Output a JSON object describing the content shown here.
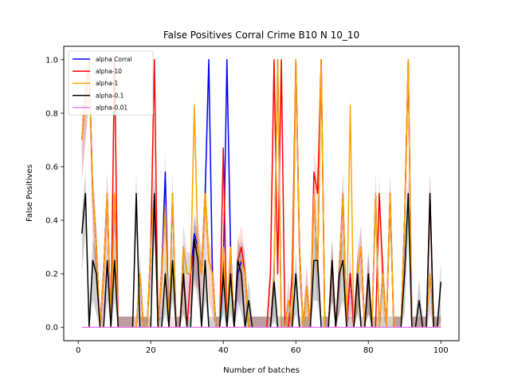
{
  "chart_data": {
    "type": "line",
    "title": "False Positives Corral Crime B10 N 10_10",
    "xlabel": "Number of batches",
    "ylabel": "False Positives",
    "xlim": [
      -4,
      105
    ],
    "ylim": [
      -0.05,
      1.05
    ],
    "xticks": [
      0,
      20,
      40,
      60,
      80,
      100
    ],
    "yticks": [
      0.0,
      0.2,
      0.4,
      0.6,
      0.8,
      1.0
    ],
    "grid": false,
    "legend_position": "top-left",
    "x": [
      1,
      2,
      3,
      4,
      5,
      6,
      7,
      8,
      9,
      10,
      11,
      12,
      13,
      14,
      15,
      16,
      17,
      18,
      19,
      20,
      21,
      22,
      23,
      24,
      25,
      26,
      27,
      28,
      29,
      30,
      31,
      32,
      33,
      34,
      35,
      36,
      37,
      38,
      39,
      40,
      41,
      42,
      43,
      44,
      45,
      46,
      47,
      48,
      49,
      50,
      51,
      52,
      53,
      54,
      55,
      56,
      57,
      58,
      59,
      60,
      61,
      62,
      63,
      64,
      65,
      66,
      67,
      68,
      69,
      70,
      71,
      72,
      73,
      74,
      75,
      76,
      77,
      78,
      79,
      80,
      81,
      82,
      83,
      84,
      85,
      86,
      87,
      88,
      89,
      90,
      91,
      92,
      93,
      94,
      95,
      96,
      97,
      98,
      99,
      100
    ],
    "series": [
      {
        "name": "alpha Corral",
        "color": "#0000ff",
        "values": [
          0.7,
          0.85,
          1.0,
          0.5,
          0.3,
          0.0,
          0.2,
          0.5,
          0.0,
          0.5,
          0.0,
          0.0,
          0.0,
          0.0,
          0.0,
          0.0,
          0.2,
          0.0,
          0.0,
          0.3,
          0.5,
          0.0,
          0.2,
          0.58,
          0.0,
          0.5,
          0.0,
          0.0,
          0.3,
          0.2,
          0.2,
          0.35,
          0.3,
          0.2,
          0.5,
          1.0,
          0.2,
          0.0,
          0.0,
          0.2,
          1.0,
          0.3,
          0.0,
          0.2,
          0.25,
          0.2,
          0.0,
          0.0,
          0.0,
          0.0,
          0.0,
          0.0,
          0.0,
          0.2,
          1.0,
          0.0,
          0.0,
          0.1,
          0.0,
          1.0,
          0.3,
          0.0,
          0.15,
          0.0,
          0.5,
          0.2,
          1.0,
          0.0,
          0.0,
          0.25,
          0.0,
          0.2,
          0.5,
          0.0,
          0.2,
          0.0,
          0.2,
          0.3,
          0.0,
          0.2,
          0.0,
          0.5,
          0.0,
          0.2,
          0.0,
          0.5,
          0.0,
          0.0,
          0.0,
          0.4,
          1.0,
          0.0,
          0.0,
          0.0,
          0.0,
          0.0,
          0.2,
          0.0,
          0.0,
          0.0
        ]
      },
      {
        "name": "alpha-10",
        "color": "#ff0000",
        "values": [
          0.7,
          0.85,
          1.0,
          0.5,
          0.3,
          0.0,
          0.2,
          0.5,
          0.0,
          1.0,
          0.0,
          0.0,
          0.0,
          0.0,
          0.0,
          0.0,
          0.0,
          0.0,
          0.0,
          0.3,
          1.0,
          0.0,
          0.2,
          0.45,
          0.0,
          0.0,
          0.0,
          0.0,
          0.2,
          0.0,
          0.2,
          0.3,
          0.3,
          0.2,
          0.5,
          0.25,
          0.2,
          0.0,
          0.0,
          0.67,
          0.0,
          0.3,
          0.0,
          0.25,
          0.3,
          0.2,
          0.0,
          0.0,
          0.0,
          0.0,
          0.0,
          0.0,
          0.2,
          1.0,
          0.2,
          1.0,
          0.0,
          0.0,
          0.2,
          1.0,
          0.3,
          0.0,
          0.15,
          0.0,
          0.58,
          0.5,
          1.0,
          0.0,
          0.0,
          0.25,
          0.0,
          0.2,
          0.5,
          0.0,
          0.2,
          0.0,
          0.2,
          0.3,
          0.0,
          0.2,
          0.0,
          0.0,
          0.5,
          0.2,
          0.0,
          0.5,
          0.0,
          0.0,
          0.0,
          0.4,
          1.0,
          0.0,
          0.0,
          0.0,
          0.0,
          0.0,
          0.5,
          0.0,
          0.0,
          0.0
        ]
      },
      {
        "name": "alpha-1",
        "color": "#ffa500",
        "values": [
          0.7,
          0.85,
          1.0,
          0.5,
          0.3,
          0.0,
          0.2,
          0.5,
          0.0,
          0.5,
          0.0,
          0.0,
          0.0,
          0.0,
          0.0,
          0.0,
          0.2,
          0.0,
          0.0,
          0.3,
          0.5,
          0.0,
          0.2,
          0.45,
          0.0,
          0.5,
          0.0,
          0.0,
          0.3,
          0.2,
          0.2,
          0.83,
          0.3,
          0.2,
          0.5,
          0.25,
          0.2,
          0.0,
          0.0,
          0.3,
          0.0,
          0.3,
          0.0,
          0.25,
          0.25,
          0.2,
          0.0,
          0.0,
          0.0,
          0.0,
          0.0,
          0.0,
          0.0,
          0.2,
          1.0,
          0.0,
          0.0,
          0.1,
          0.0,
          1.0,
          0.3,
          0.0,
          0.15,
          0.0,
          0.5,
          0.2,
          1.0,
          0.0,
          0.0,
          0.25,
          0.0,
          0.2,
          0.5,
          0.0,
          0.83,
          0.0,
          0.2,
          0.3,
          0.0,
          0.2,
          0.0,
          0.5,
          0.0,
          0.2,
          0.0,
          0.5,
          0.0,
          0.0,
          0.0,
          0.4,
          1.0,
          0.0,
          0.0,
          0.0,
          0.0,
          0.0,
          0.2,
          0.0,
          0.0,
          0.0
        ]
      },
      {
        "name": "alpha-0.1",
        "color": "#000000",
        "values": [
          0.35,
          0.5,
          0.0,
          0.25,
          0.2,
          0.0,
          0.0,
          0.25,
          0.0,
          0.25,
          0.0,
          0.0,
          0.0,
          0.0,
          0.0,
          0.5,
          0.0,
          0.0,
          0.0,
          0.0,
          0.5,
          0.0,
          0.0,
          0.2,
          0.0,
          0.25,
          0.0,
          0.0,
          0.2,
          0.0,
          0.0,
          0.33,
          0.25,
          0.0,
          0.25,
          0.0,
          0.0,
          0.0,
          0.0,
          0.2,
          0.0,
          0.2,
          0.0,
          0.25,
          0.2,
          0.0,
          0.1,
          0.0,
          0.0,
          0.0,
          0.0,
          0.0,
          0.0,
          0.17,
          0.0,
          0.0,
          0.0,
          0.0,
          0.0,
          0.2,
          0.0,
          0.0,
          0.0,
          0.0,
          0.25,
          0.25,
          0.0,
          0.0,
          0.0,
          0.25,
          0.0,
          0.2,
          0.25,
          0.0,
          0.0,
          0.0,
          0.2,
          0.0,
          0.0,
          0.2,
          0.0,
          0.0,
          0.0,
          0.0,
          0.0,
          0.0,
          0.0,
          0.0,
          0.0,
          0.2,
          0.5,
          0.0,
          0.0,
          0.1,
          0.0,
          0.0,
          0.5,
          0.0,
          0.0,
          0.17
        ]
      },
      {
        "name": "alpha-0.01",
        "color": "#ee82ee",
        "values": [
          0.0,
          0.0,
          0.0,
          0.0,
          0.0,
          0.0,
          0.0,
          0.0,
          0.0,
          0.0,
          0.0,
          0.0,
          0.0,
          0.0,
          0.0,
          0.0,
          0.0,
          0.0,
          0.0,
          0.0,
          0.0,
          0.0,
          0.0,
          0.0,
          0.0,
          0.0,
          0.0,
          0.0,
          0.0,
          0.0,
          0.0,
          0.0,
          0.0,
          0.0,
          0.0,
          0.0,
          0.0,
          0.0,
          0.0,
          0.0,
          0.0,
          0.0,
          0.0,
          0.0,
          0.0,
          0.0,
          0.0,
          0.0,
          0.0,
          0.0,
          0.0,
          0.0,
          0.0,
          0.0,
          0.0,
          0.0,
          0.0,
          0.0,
          0.0,
          0.0,
          0.0,
          0.0,
          0.0,
          0.0,
          0.0,
          0.0,
          0.0,
          0.0,
          0.0,
          0.0,
          0.0,
          0.0,
          0.0,
          0.0,
          0.0,
          0.0,
          0.0,
          0.0,
          0.0,
          0.0,
          0.0,
          0.0,
          0.0,
          0.0,
          0.0,
          0.0,
          0.0,
          0.0,
          0.0,
          0.0,
          0.0,
          0.0,
          0.0,
          0.0,
          0.0,
          0.0,
          0.0,
          0.0,
          0.0,
          0.0
        ]
      }
    ]
  }
}
